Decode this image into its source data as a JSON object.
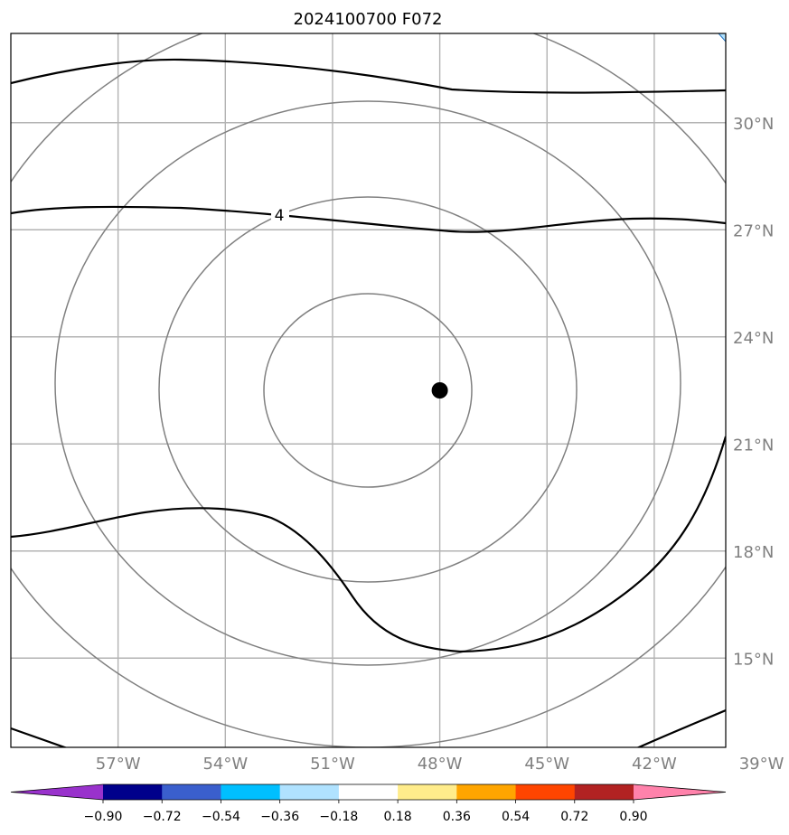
{
  "title": "2024100700 F072",
  "map": {
    "lon_range": [
      -60,
      -40
    ],
    "lat_range": [
      12.5,
      32.5
    ],
    "gridlines": true,
    "lat_ticks": [
      {
        "value": 30,
        "label": "30°N"
      },
      {
        "value": 27,
        "label": "27°N"
      },
      {
        "value": 24,
        "label": "24°N"
      },
      {
        "value": 21,
        "label": "21°N"
      },
      {
        "value": 18,
        "label": "18°N"
      },
      {
        "value": 15,
        "label": "15°N"
      }
    ],
    "lon_ticks": [
      {
        "value": -57,
        "label": "57°W"
      },
      {
        "value": -54,
        "label": "54°W"
      },
      {
        "value": -51,
        "label": "51°W"
      },
      {
        "value": -48,
        "label": "48°W"
      },
      {
        "value": -45,
        "label": "45°W"
      },
      {
        "value": -42,
        "label": "42°W"
      },
      {
        "value": -39,
        "label": "39°W"
      }
    ],
    "center_marker": {
      "lon": -48,
      "lat": 22.5
    },
    "range_ring_color": "#808080",
    "contour_color": "#000000",
    "contour_label": "4"
  },
  "colorbar": {
    "ticks": [
      "−0.90",
      "−0.72",
      "−0.54",
      "−0.36",
      "−0.18",
      "0.18",
      "0.36",
      "0.54",
      "0.72",
      "0.90"
    ],
    "colors": [
      "#9932cc",
      "#00008b",
      "#3a5fcd",
      "#00bfff",
      "#b0e2ff",
      "#ffffff",
      "#ffec8b",
      "#ffa500",
      "#ff4500",
      "#b22222",
      "#ff82ab"
    ]
  }
}
